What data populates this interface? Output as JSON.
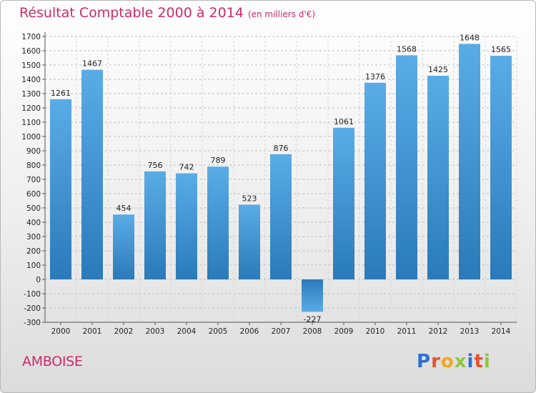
{
  "header": {
    "title": "Résultat Comptable 2000 à 2014",
    "subtitle": "(en milliers d'€)"
  },
  "footer": {
    "town": "AMBOISE",
    "logo_letters": [
      "P",
      "r",
      "o",
      "x",
      "i",
      "t",
      "i"
    ],
    "logo_colors": [
      "#2c6fd1",
      "#e8512b",
      "#f2a81d",
      "#8cc63f",
      "#2c6fd1",
      "#e8512b",
      "#8cc63f"
    ]
  },
  "colors": {
    "title": "#cc2a6b",
    "bar_light": "#5aace6",
    "bar_dark": "#2a7ab9",
    "grid": "#bdbdbd"
  },
  "chart_data": {
    "type": "bar",
    "title": "Résultat Comptable 2000 à 2014",
    "subtitle": "(en milliers d'€)",
    "categories": [
      "2000",
      "2001",
      "2002",
      "2003",
      "2004",
      "2005",
      "2006",
      "2007",
      "2008",
      "2009",
      "2010",
      "2011",
      "2012",
      "2013",
      "2014"
    ],
    "values": [
      1261,
      1467,
      454,
      756,
      742,
      789,
      523,
      876,
      -227,
      1061,
      1376,
      1568,
      1425,
      1648,
      1565
    ],
    "ylim": [
      -300,
      1700
    ],
    "yticks": [
      -300,
      -200,
      -100,
      0,
      100,
      200,
      300,
      400,
      500,
      600,
      700,
      800,
      900,
      1000,
      1100,
      1200,
      1300,
      1400,
      1500,
      1600,
      1700
    ],
    "grid": "horizontal dashed",
    "legend": "none"
  }
}
